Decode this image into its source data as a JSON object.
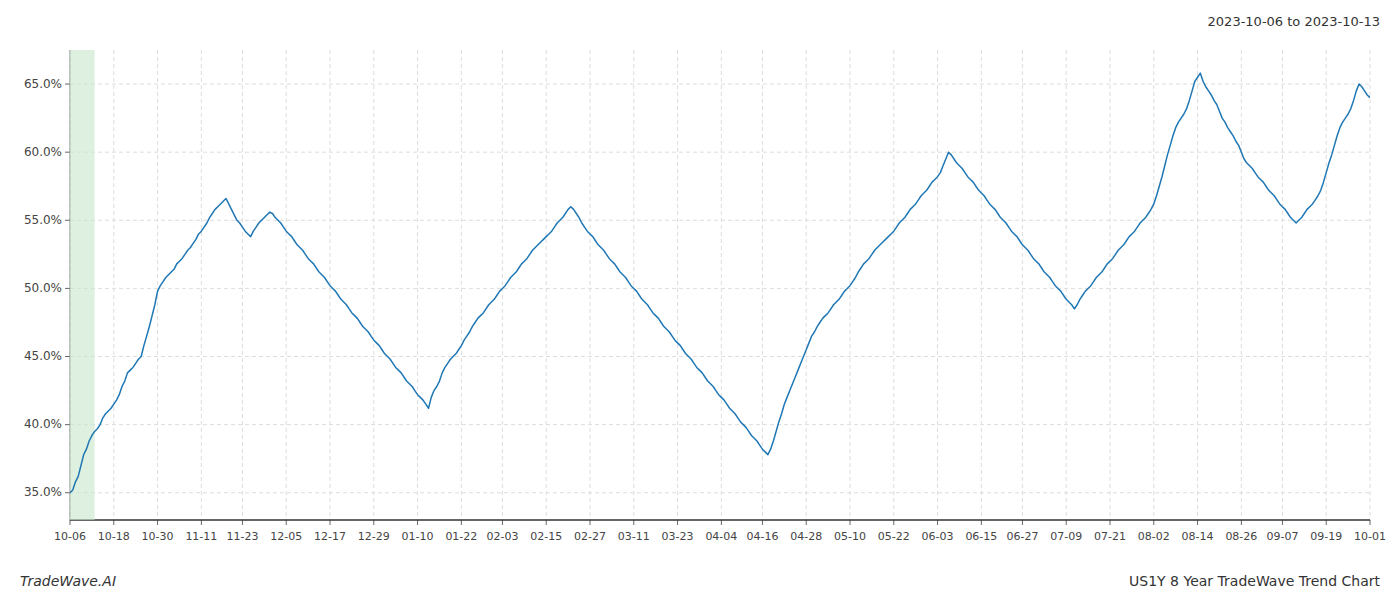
{
  "chart_data": {
    "type": "line",
    "title": "US1Y 8 Year TradeWave Trend Chart",
    "subtitle": "2023-10-06 to 2023-10-13",
    "annotations": [
      "TradeWave.AI"
    ],
    "color": "#1f77b4",
    "grid": true,
    "ylim": [
      0.33,
      0.675
    ],
    "yticks": [
      {
        "value": 0.35,
        "label": "35.0%"
      },
      {
        "value": 0.4,
        "label": "40.0%"
      },
      {
        "value": 0.45,
        "label": "45.0%"
      },
      {
        "value": 0.5,
        "label": "50.0%"
      },
      {
        "value": 0.55,
        "label": "55.0%"
      },
      {
        "value": 0.6,
        "label": "60.0%"
      },
      {
        "value": 0.65,
        "label": "65.0%"
      }
    ],
    "shading": {
      "start": 0,
      "end": 9,
      "color": "#c8e6c9"
    },
    "categories": [
      "10-06",
      null,
      null,
      null,
      null,
      null,
      null,
      null,
      null,
      null,
      null,
      null,
      null,
      null,
      null,
      null,
      "10-18",
      null,
      null,
      null,
      null,
      null,
      null,
      null,
      null,
      null,
      null,
      null,
      null,
      null,
      null,
      null,
      "10-30",
      null,
      null,
      null,
      null,
      null,
      null,
      null,
      null,
      null,
      null,
      null,
      null,
      null,
      null,
      null,
      "11-11",
      null,
      null,
      null,
      null,
      null,
      null,
      null,
      null,
      null,
      null,
      null,
      null,
      null,
      null,
      "11-23",
      null,
      null,
      null,
      null,
      null,
      null,
      null,
      null,
      null,
      null,
      null,
      null,
      null,
      null,
      null,
      "12-05",
      null,
      null,
      null,
      null,
      null,
      null,
      null,
      null,
      null,
      null,
      null,
      null,
      null,
      null,
      null,
      "12-17",
      null,
      null,
      null,
      null,
      null,
      null,
      null,
      null,
      null,
      null,
      null,
      null,
      null,
      null,
      null,
      "12-29",
      null,
      null,
      null,
      null,
      null,
      null,
      null,
      null,
      null,
      null,
      null,
      null,
      null,
      null,
      null,
      "01-10",
      null,
      null,
      null,
      null,
      null,
      null,
      null,
      null,
      null,
      null,
      null,
      null,
      null,
      null,
      null,
      "01-22",
      null,
      null,
      null,
      null,
      null,
      null,
      null,
      null,
      null,
      null,
      null,
      null,
      null,
      null,
      "02-03",
      null,
      null,
      null,
      null,
      null,
      null,
      null,
      null,
      null,
      null,
      null,
      null,
      null,
      null,
      null,
      "02-15",
      null,
      null,
      null,
      null,
      null,
      null,
      null,
      null,
      null,
      null,
      null,
      null,
      null,
      null,
      null,
      "02-27",
      null,
      null,
      null,
      null,
      null,
      null,
      null,
      null,
      null,
      null,
      null,
      null,
      null,
      null,
      null,
      "03-11",
      null,
      null,
      null,
      null,
      null,
      null,
      null,
      null,
      null,
      null,
      null,
      null,
      null,
      null,
      null,
      "03-23",
      null,
      null,
      null,
      null,
      null,
      null,
      null,
      null,
      null,
      null,
      null,
      null,
      null,
      null,
      null,
      "04-04",
      null,
      null,
      null,
      null,
      null,
      null,
      null,
      null,
      null,
      null,
      null,
      null,
      null,
      null,
      "04-16",
      null,
      null,
      null,
      null,
      null,
      null,
      null,
      null,
      null,
      null,
      null,
      null,
      null,
      null,
      null,
      "04-28",
      null,
      null,
      null,
      null,
      null,
      null,
      null,
      null,
      null,
      null,
      null,
      null,
      null,
      null,
      null,
      "05-10",
      null,
      null,
      null,
      null,
      null,
      null,
      null,
      null,
      null,
      null,
      null,
      null,
      null,
      null,
      null,
      "05-22",
      null,
      null,
      null,
      null,
      null,
      null,
      null,
      null,
      null,
      null,
      null,
      null,
      null,
      null,
      null,
      "06-03",
      null,
      null,
      null,
      null,
      null,
      null,
      null,
      null,
      null,
      null,
      null,
      null,
      null,
      null,
      null,
      "06-15",
      null,
      null,
      null,
      null,
      null,
      null,
      null,
      null,
      null,
      null,
      null,
      null,
      null,
      null,
      "06-27",
      null,
      null,
      null,
      null,
      null,
      null,
      null,
      null,
      null,
      null,
      null,
      null,
      null,
      null,
      null,
      "07-09",
      null,
      null,
      null,
      null,
      null,
      null,
      null,
      null,
      null,
      null,
      null,
      null,
      null,
      null,
      null,
      "07-21",
      null,
      null,
      null,
      null,
      null,
      null,
      null,
      null,
      null,
      null,
      null,
      null,
      null,
      null,
      null,
      "08-02",
      null,
      null,
      null,
      null,
      null,
      null,
      null,
      null,
      null,
      null,
      null,
      null,
      null,
      null,
      null,
      "08-14",
      null,
      null,
      null,
      null,
      null,
      null,
      null,
      null,
      null,
      null,
      null,
      null,
      null,
      null,
      null,
      "08-26",
      null,
      null,
      null,
      null,
      null,
      null,
      null,
      null,
      null,
      null,
      null,
      null,
      null,
      null,
      "09-07",
      null,
      null,
      null,
      null,
      null,
      null,
      null,
      null,
      null,
      null,
      null,
      null,
      null,
      null,
      null,
      "09-19",
      null,
      null,
      null,
      null,
      null,
      null,
      null,
      null,
      null,
      null,
      null,
      null,
      null,
      null,
      null,
      "10-01"
    ],
    "values": [
      0.35,
      0.352,
      0.358,
      0.362,
      0.37,
      0.378,
      0.382,
      0.388,
      0.392,
      0.395,
      0.397,
      0.4,
      0.405,
      0.408,
      0.41,
      0.412,
      0.415,
      0.418,
      0.422,
      0.428,
      0.432,
      0.438,
      0.44,
      0.442,
      0.445,
      0.448,
      0.45,
      0.458,
      0.465,
      0.472,
      0.48,
      0.488,
      0.498,
      0.502,
      0.505,
      0.508,
      0.51,
      0.512,
      0.514,
      0.518,
      0.52,
      0.522,
      0.525,
      0.528,
      0.53,
      0.533,
      0.536,
      0.54,
      0.542,
      0.545,
      0.548,
      0.552,
      0.555,
      0.558,
      0.56,
      0.562,
      0.564,
      0.566,
      0.562,
      0.558,
      0.554,
      0.55,
      0.548,
      0.545,
      0.542,
      0.54,
      0.538,
      0.542,
      0.545,
      0.548,
      0.55,
      0.552,
      0.554,
      0.556,
      0.555,
      0.552,
      0.55,
      0.548,
      0.545,
      0.542,
      0.54,
      0.538,
      0.535,
      0.532,
      0.53,
      0.528,
      0.525,
      0.522,
      0.52,
      0.518,
      0.515,
      0.512,
      0.51,
      0.508,
      0.505,
      0.502,
      0.5,
      0.498,
      0.495,
      0.492,
      0.49,
      0.488,
      0.485,
      0.482,
      0.48,
      0.478,
      0.475,
      0.472,
      0.47,
      0.468,
      0.465,
      0.462,
      0.46,
      0.458,
      0.455,
      0.452,
      0.45,
      0.448,
      0.445,
      0.442,
      0.44,
      0.438,
      0.435,
      0.432,
      0.43,
      0.428,
      0.425,
      0.422,
      0.42,
      0.418,
      0.415,
      0.412,
      0.42,
      0.425,
      0.428,
      0.432,
      0.438,
      0.442,
      0.445,
      0.448,
      0.45,
      0.452,
      0.455,
      0.458,
      0.462,
      0.465,
      0.468,
      0.472,
      0.475,
      0.478,
      0.48,
      0.482,
      0.485,
      0.488,
      0.49,
      0.492,
      0.495,
      0.498,
      0.5,
      0.502,
      0.505,
      0.508,
      0.51,
      0.512,
      0.515,
      0.518,
      0.52,
      0.522,
      0.525,
      0.528,
      0.53,
      0.532,
      0.534,
      0.536,
      0.538,
      0.54,
      0.542,
      0.545,
      0.548,
      0.55,
      0.552,
      0.555,
      0.558,
      0.56,
      0.558,
      0.555,
      0.552,
      0.548,
      0.545,
      0.542,
      0.54,
      0.538,
      0.535,
      0.532,
      0.53,
      0.528,
      0.525,
      0.522,
      0.52,
      0.518,
      0.515,
      0.512,
      0.51,
      0.508,
      0.505,
      0.502,
      0.5,
      0.498,
      0.495,
      0.492,
      0.49,
      0.488,
      0.485,
      0.482,
      0.48,
      0.478,
      0.475,
      0.472,
      0.47,
      0.468,
      0.465,
      0.462,
      0.46,
      0.458,
      0.455,
      0.452,
      0.45,
      0.448,
      0.445,
      0.442,
      0.44,
      0.438,
      0.435,
      0.432,
      0.43,
      0.428,
      0.425,
      0.422,
      0.42,
      0.418,
      0.415,
      0.412,
      0.41,
      0.408,
      0.405,
      0.402,
      0.4,
      0.398,
      0.395,
      0.392,
      0.39,
      0.388,
      0.385,
      0.382,
      0.38,
      0.378,
      0.382,
      0.388,
      0.395,
      0.402,
      0.408,
      0.415,
      0.42,
      0.425,
      0.43,
      0.435,
      0.44,
      0.445,
      0.45,
      0.455,
      0.46,
      0.465,
      0.468,
      0.472,
      0.475,
      0.478,
      0.48,
      0.482,
      0.485,
      0.488,
      0.49,
      0.492,
      0.495,
      0.498,
      0.5,
      0.502,
      0.505,
      0.508,
      0.512,
      0.515,
      0.518,
      0.52,
      0.522,
      0.525,
      0.528,
      0.53,
      0.532,
      0.534,
      0.536,
      0.538,
      0.54,
      0.542,
      0.545,
      0.548,
      0.55,
      0.552,
      0.555,
      0.558,
      0.56,
      0.562,
      0.565,
      0.568,
      0.57,
      0.572,
      0.575,
      0.578,
      0.58,
      0.582,
      0.585,
      0.59,
      0.595,
      0.6,
      0.598,
      0.595,
      0.592,
      0.59,
      0.588,
      0.585,
      0.582,
      0.58,
      0.578,
      0.575,
      0.572,
      0.57,
      0.568,
      0.565,
      0.562,
      0.56,
      0.558,
      0.555,
      0.552,
      0.55,
      0.548,
      0.545,
      0.542,
      0.54,
      0.538,
      0.535,
      0.532,
      0.53,
      0.528,
      0.525,
      0.522,
      0.52,
      0.518,
      0.515,
      0.512,
      0.51,
      0.508,
      0.505,
      0.502,
      0.5,
      0.498,
      0.495,
      0.492,
      0.49,
      0.488,
      0.485,
      0.488,
      0.492,
      0.495,
      0.498,
      0.5,
      0.502,
      0.505,
      0.508,
      0.51,
      0.512,
      0.515,
      0.518,
      0.52,
      0.522,
      0.525,
      0.528,
      0.53,
      0.532,
      0.535,
      0.538,
      0.54,
      0.542,
      0.545,
      0.548,
      0.55,
      0.552,
      0.555,
      0.558,
      0.562,
      0.568,
      0.575,
      0.582,
      0.59,
      0.598,
      0.605,
      0.612,
      0.618,
      0.622,
      0.625,
      0.628,
      0.632,
      0.638,
      0.645,
      0.652,
      0.655,
      0.658,
      0.652,
      0.648,
      0.645,
      0.642,
      0.638,
      0.635,
      0.63,
      0.625,
      0.622,
      0.618,
      0.615,
      0.612,
      0.608,
      0.605,
      0.6,
      0.595,
      0.592,
      0.59,
      0.588,
      0.585,
      0.582,
      0.58,
      0.578,
      0.575,
      0.572,
      0.57,
      0.568,
      0.565,
      0.562,
      0.56,
      0.558,
      0.555,
      0.552,
      0.55,
      0.548,
      0.55,
      0.552,
      0.555,
      0.558,
      0.56,
      0.562,
      0.565,
      0.568,
      0.572,
      0.578,
      0.585,
      0.592,
      0.598,
      0.605,
      0.612,
      0.618,
      0.622,
      0.625,
      0.628,
      0.632,
      0.638,
      0.645,
      0.65,
      0.648,
      0.645,
      0.642,
      0.64
    ]
  }
}
